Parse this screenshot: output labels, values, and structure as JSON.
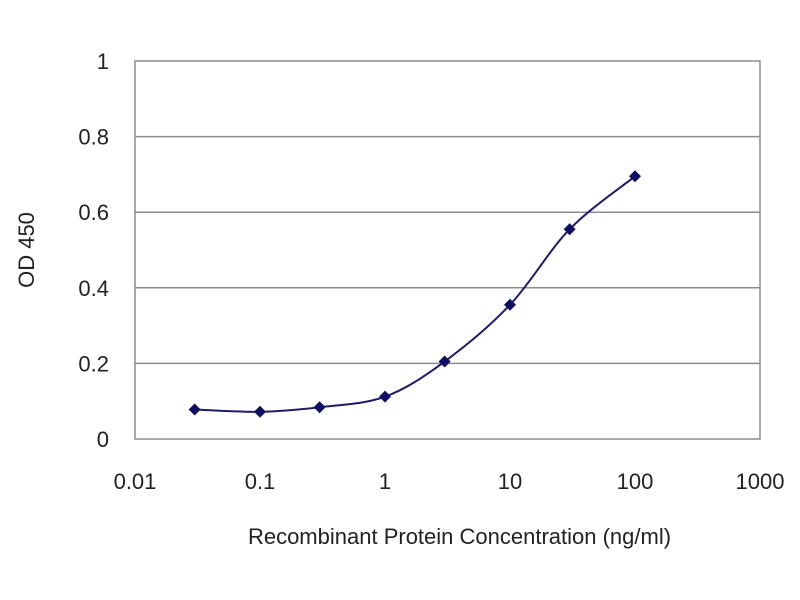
{
  "chart_data": {
    "type": "line",
    "title": "",
    "xlabel": "Recombinant Protein Concentration (ng/ml)",
    "ylabel": "OD 450",
    "x_scale": "log",
    "xlim": [
      0.01,
      1000
    ],
    "ylim": [
      0,
      1
    ],
    "x_ticks": [
      {
        "value": 0.01,
        "label": "0.01"
      },
      {
        "value": 0.1,
        "label": "0.1"
      },
      {
        "value": 1,
        "label": "1"
      },
      {
        "value": 10,
        "label": "10"
      },
      {
        "value": 100,
        "label": "100"
      },
      {
        "value": 1000,
        "label": "1000"
      }
    ],
    "y_ticks": [
      {
        "value": 0,
        "label": "0"
      },
      {
        "value": 0.2,
        "label": "0.2"
      },
      {
        "value": 0.4,
        "label": "0.4"
      },
      {
        "value": 0.6,
        "label": "0.6"
      },
      {
        "value": 0.8,
        "label": "0.8"
      },
      {
        "value": 1,
        "label": "1"
      }
    ],
    "grid": {
      "horizontal": true,
      "vertical": false
    },
    "legend": "none",
    "series": [
      {
        "x": [
          0.03,
          0.1,
          0.3,
          1,
          3,
          10,
          30,
          100
        ],
        "y": [
          0.078,
          0.072,
          0.084,
          0.112,
          0.205,
          0.355,
          0.555,
          0.695
        ]
      }
    ],
    "colors": {
      "series": "#1a1a7a",
      "marker": "#0f0f66",
      "grid": "#8c8c8c",
      "frame": "#8c8c8c",
      "text": "#222222"
    }
  }
}
